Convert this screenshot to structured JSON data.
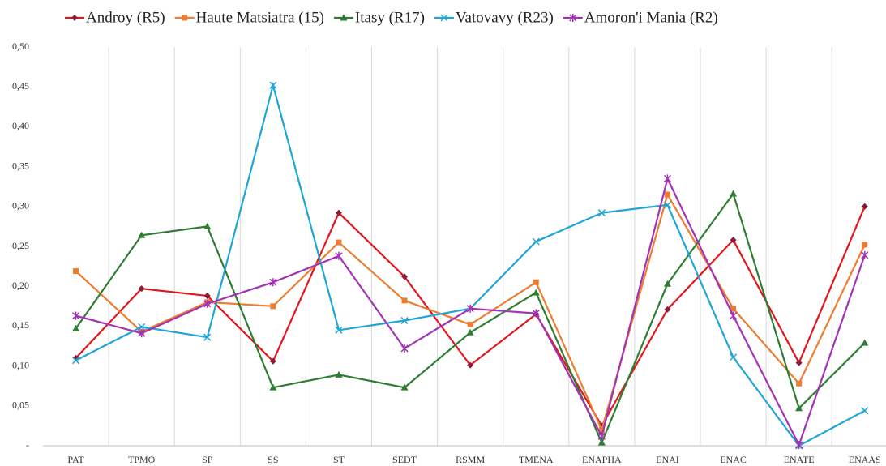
{
  "chart_data": {
    "type": "line",
    "categories": [
      "PAT",
      "TPMO",
      "SP",
      "SS",
      "ST",
      "SEDT",
      "RSMM",
      "TMENA",
      "ENAPHA",
      "ENAI",
      "ENAC",
      "ENATE",
      "ENAAS"
    ],
    "series": [
      {
        "name": "Androy (R5)",
        "color": "#e3161c",
        "values": [
          0.11,
          0.197,
          0.188,
          0.106,
          0.292,
          0.212,
          0.101,
          0.165,
          0.025,
          0.171,
          0.258,
          0.104,
          0.3
        ]
      },
      {
        "name": "Haute Matsiatra (15)",
        "color": "#ed7d31",
        "values": [
          0.219,
          0.143,
          0.18,
          0.175,
          0.255,
          0.182,
          0.152,
          0.205,
          0.02,
          0.315,
          0.172,
          0.078,
          0.252
        ]
      },
      {
        "name": "Itasy (R17)",
        "color": "#2e7d32",
        "values": [
          0.147,
          0.264,
          0.275,
          0.073,
          0.089,
          0.073,
          0.142,
          0.192,
          0.004,
          0.203,
          0.316,
          0.047,
          0.129
        ]
      },
      {
        "name": "Vatovavy (R23)",
        "color": "#1fa5d6",
        "values": [
          0.107,
          0.149,
          0.136,
          0.452,
          0.145,
          0.157,
          0.172,
          0.256,
          0.292,
          0.302,
          0.111,
          0.0,
          0.044
        ]
      },
      {
        "name": "Amoron'i Mania (R2)",
        "color": "#a333b5",
        "values": [
          0.163,
          0.141,
          0.178,
          0.205,
          0.238,
          0.122,
          0.172,
          0.166,
          0.012,
          0.335,
          0.163,
          0.001,
          0.239
        ]
      }
    ],
    "ylim": [
      0,
      0.5
    ],
    "yticks": [
      {
        "value": 0,
        "label": "-"
      },
      {
        "value": 0.05,
        "label": "0,05"
      },
      {
        "value": 0.1,
        "label": "0,10"
      },
      {
        "value": 0.15,
        "label": "0,15"
      },
      {
        "value": 0.2,
        "label": "0,20"
      },
      {
        "value": 0.25,
        "label": "0,25"
      },
      {
        "value": 0.3,
        "label": "0,30"
      },
      {
        "value": 0.35,
        "label": "0,35"
      },
      {
        "value": 0.4,
        "label": "0,40"
      },
      {
        "value": 0.45,
        "label": "0,45"
      },
      {
        "value": 0.5,
        "label": "0,50"
      }
    ],
    "grid": true,
    "legend": "top"
  }
}
